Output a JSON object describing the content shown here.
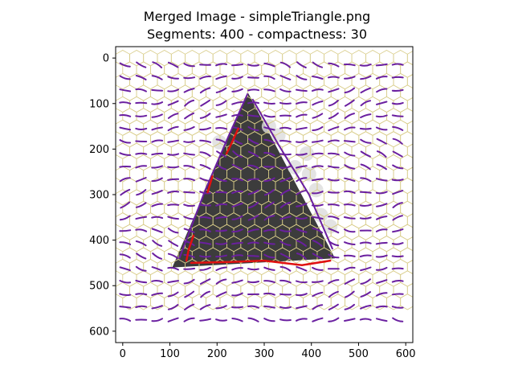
{
  "chart_data": {
    "type": "image",
    "title": "Merged Image - simpleTriangle.png",
    "subtitle": "Segments: 400 - compactness: 30",
    "x_ticks": [
      0,
      100,
      200,
      300,
      400,
      500,
      600
    ],
    "y_ticks": [
      0,
      100,
      200,
      300,
      400,
      500,
      600
    ],
    "xlim": [
      -15,
      615
    ],
    "ylim": [
      625,
      -25
    ],
    "triangle_vertices": [
      [
        265,
        75
      ],
      [
        105,
        460
      ],
      [
        450,
        440
      ]
    ],
    "colors": {
      "triangle_fill": "#2b2b2b",
      "segment_boundary": "#d8cc88",
      "stroke_lines": "#6a1fa0",
      "highlight": "#e01010",
      "axes": "#000000"
    }
  }
}
